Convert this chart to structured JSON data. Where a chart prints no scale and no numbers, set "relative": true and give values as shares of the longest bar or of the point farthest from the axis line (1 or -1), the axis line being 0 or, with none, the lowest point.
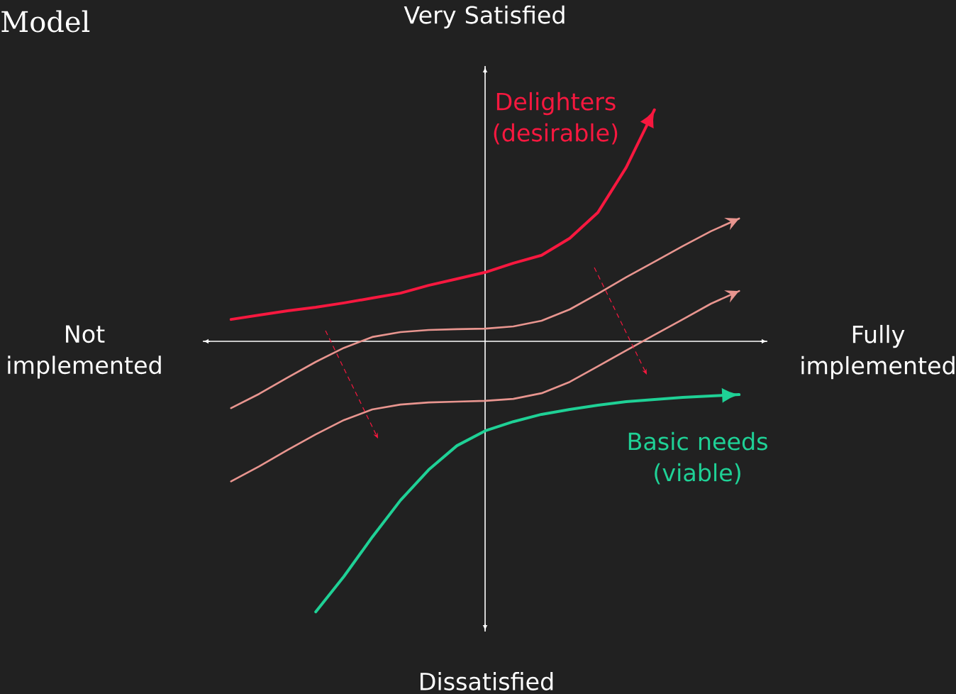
{
  "chart_data": {
    "type": "line",
    "relative": true,
    "title": "Model",
    "annotations": [
      "Very Satisfied",
      "Dissatisfied",
      "Not implemented",
      "Fully implemented"
    ],
    "categories": [
      null,
      null,
      null,
      null,
      null,
      null,
      null,
      null,
      null,
      null,
      null,
      null,
      null,
      null,
      null,
      null,
      null,
      null,
      null
    ],
    "series": [
      {
        "name": "Delighters (desirable)",
        "color": "#f7183f",
        "values": [
          0.081,
          0.097,
          0.113,
          0.126,
          0.142,
          0.16,
          0.178,
          0.207,
          0.231,
          0.255,
          0.289,
          0.318,
          0.381,
          0.477,
          0.643,
          0.856,
          null,
          null,
          null
        ]
      },
      {
        "color": "#e8958f",
        "values": [
          -0.247,
          -0.194,
          -0.134,
          -0.076,
          -0.024,
          0.016,
          0.034,
          0.042,
          0.045,
          0.047,
          0.055,
          0.076,
          0.118,
          0.176,
          0.237,
          0.294,
          0.352,
          0.407,
          0.454
        ]
      },
      {
        "color": "#e8958f",
        "values": [
          -0.518,
          -0.462,
          -0.402,
          -0.344,
          -0.291,
          -0.252,
          -0.234,
          -0.226,
          -0.223,
          -0.22,
          -0.213,
          -0.192,
          -0.15,
          -0.092,
          -0.034,
          0.024,
          0.081,
          0.139,
          0.186
        ]
      },
      {
        "name": "Basic needs (viable)",
        "color": "#1fd196",
        "values": [
          null,
          null,
          null,
          -1.0,
          -0.869,
          -0.724,
          -0.588,
          -0.475,
          -0.386,
          -0.331,
          -0.297,
          -0.27,
          -0.252,
          -0.236,
          -0.223,
          -0.215,
          -0.207,
          -0.202,
          -0.197
        ]
      }
    ]
  }
}
